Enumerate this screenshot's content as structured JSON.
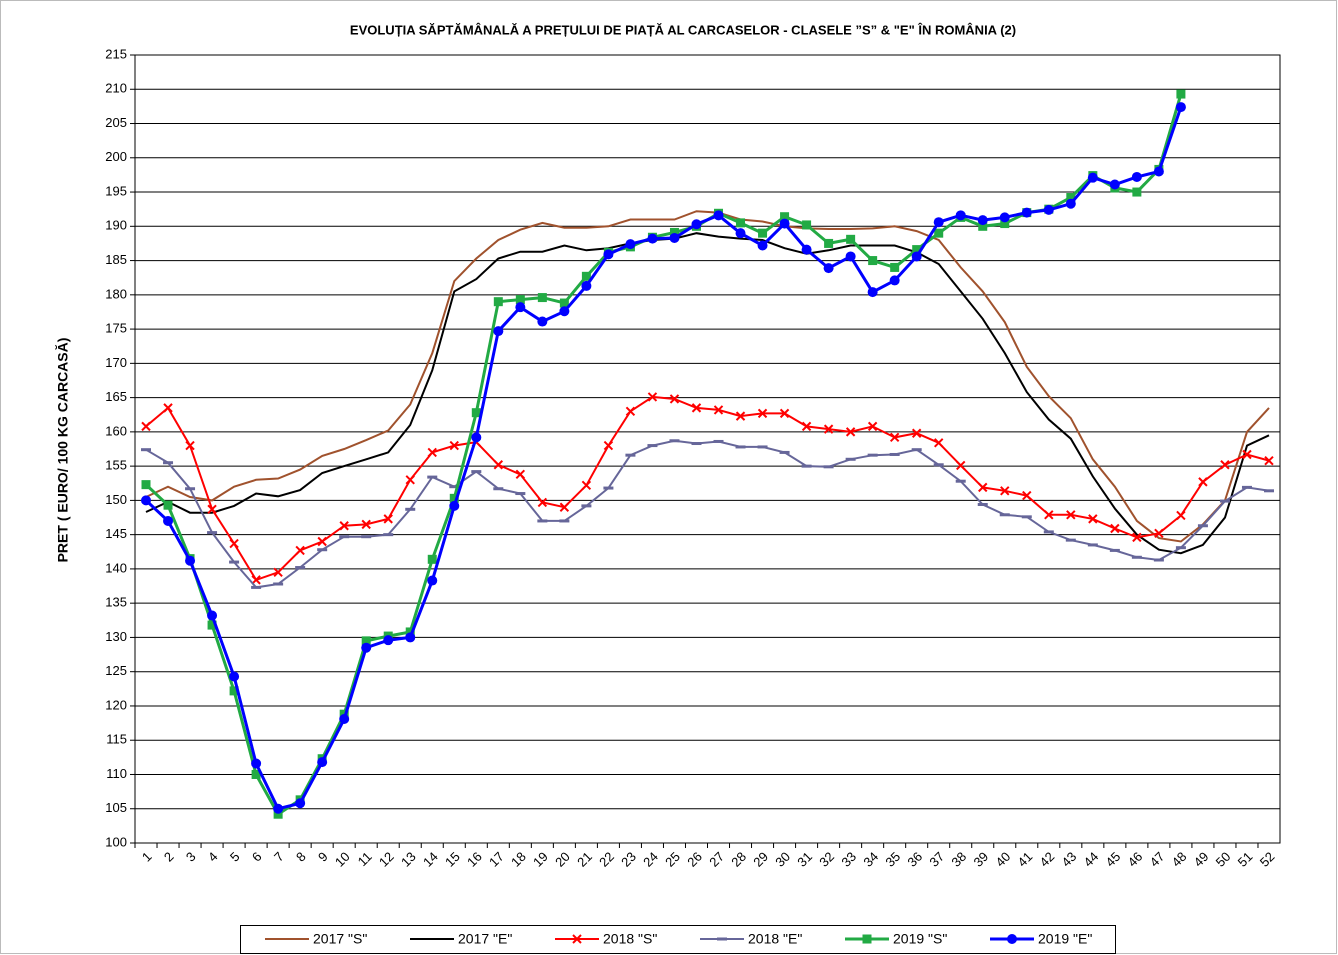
{
  "chart_data": {
    "type": "line",
    "title": "EVOLUȚIA SĂPTĂMÂNALĂ A PREȚULUI  DE PIAȚĂ  AL CARCASELOR  - CLASELE ”S” & \"E\" ÎN ROMÂNIA (2)",
    "y_label": "PRET ( EURO/ 100 KG CARCASĂ)",
    "categories": [
      "1",
      "2",
      "3",
      "4",
      "5",
      "6",
      "7",
      "8",
      "9",
      "10",
      "11",
      "12",
      "13",
      "14",
      "15",
      "16",
      "17",
      "18",
      "19",
      "20",
      "21",
      "22",
      "23",
      "24",
      "25",
      "26",
      "27",
      "28",
      "29",
      "30",
      "31",
      "32",
      "33",
      "34",
      "35",
      "36",
      "37",
      "38",
      "39",
      "40",
      "41",
      "42",
      "43",
      "44",
      "45",
      "46",
      "47",
      "48",
      "49",
      "50",
      "51",
      "52"
    ],
    "ylim": [
      100,
      215
    ],
    "yticks": [
      100,
      105,
      110,
      115,
      120,
      125,
      130,
      135,
      140,
      145,
      150,
      155,
      160,
      165,
      170,
      175,
      180,
      185,
      190,
      195,
      200,
      205,
      210,
      215
    ],
    "grid": true,
    "legend": "bottom",
    "series": [
      {
        "name": "2017 \"S\"",
        "color": "#a0522d",
        "marker": "none",
        "values": [
          150.5,
          152,
          150.5,
          150,
          152,
          153,
          153.2,
          154.5,
          156.5,
          157.5,
          158.8,
          160.2,
          164,
          171.5,
          182,
          185.3,
          188,
          189.5,
          190.5,
          189.8,
          189.8,
          190,
          191,
          191,
          191,
          192.2,
          192,
          191,
          190.7,
          190,
          189.7,
          189.6,
          189.6,
          189.7,
          190,
          189.3,
          188,
          184,
          180.5,
          176,
          169.5,
          165.2,
          162,
          156,
          152,
          147,
          144.5,
          144,
          146.5,
          150,
          160,
          163.5
        ]
      },
      {
        "name": "2017 \"E\"",
        "color": "#000000",
        "marker": "none",
        "values": [
          148.3,
          149.8,
          148.2,
          148.2,
          149.2,
          151,
          150.6,
          151.5,
          154,
          155,
          156,
          157,
          161,
          169,
          180.5,
          182.3,
          185.3,
          186.3,
          186.3,
          187.2,
          186.5,
          186.8,
          187.5,
          188,
          188.2,
          189,
          188.5,
          188.2,
          188,
          186.8,
          186,
          186.5,
          187.2,
          187.2,
          187.2,
          186.2,
          184.5,
          180.5,
          176.5,
          171.5,
          165.8,
          161.8,
          159,
          153.5,
          148.8,
          145,
          142.8,
          142.3,
          143.5,
          147.5,
          158,
          159.5
        ]
      },
      {
        "name": "2018 \"S\"",
        "color": "#ff0000",
        "marker": "x",
        "values": [
          160.8,
          163.5,
          158,
          148.7,
          143.7,
          138.4,
          139.5,
          142.7,
          144,
          146.3,
          146.5,
          147.3,
          153,
          157,
          158,
          158.5,
          155.2,
          153.8,
          149.7,
          149,
          152.2,
          158,
          163,
          165.1,
          164.8,
          163.5,
          163.2,
          162.3,
          162.7,
          162.7,
          160.8,
          160.4,
          160,
          160.8,
          159.2,
          159.8,
          158.4,
          155.1,
          151.9,
          151.4,
          150.7,
          147.9,
          147.9,
          147.3,
          145.9,
          144.6,
          145.2,
          147.8,
          152.7,
          155.2,
          156.7,
          155.8
        ]
      },
      {
        "name": "2018 \"E\"",
        "color": "#666699",
        "marker": "dash",
        "values": [
          157.4,
          155.5,
          151.7,
          145.3,
          141,
          137.3,
          137.8,
          140.2,
          142.8,
          144.7,
          144.7,
          145,
          148.7,
          153.4,
          152,
          154.2,
          151.7,
          151,
          147,
          147,
          149.2,
          151.8,
          156.6,
          158,
          158.7,
          158.3,
          158.6,
          157.8,
          157.8,
          157,
          155,
          154.9,
          156,
          156.6,
          156.7,
          157.4,
          155.2,
          152.8,
          149.4,
          147.9,
          147.6,
          145.4,
          144.2,
          143.5,
          142.7,
          141.7,
          141.3,
          143.1,
          146.3,
          149.9,
          151.9,
          151.4
        ]
      },
      {
        "name": "2019 \"S\"",
        "color": "#22aa44",
        "marker": "square",
        "values": [
          152.3,
          149.3,
          141.5,
          131.8,
          122.2,
          110,
          104.2,
          106.3,
          112.3,
          118.8,
          129.5,
          130.2,
          130.8,
          141.4,
          150.3,
          162.8,
          179,
          179.3,
          179.6,
          178.8,
          182.7,
          186.2,
          187,
          188.4,
          189.1,
          190,
          191.9,
          190.5,
          189,
          191.4,
          190.2,
          187.5,
          188.1,
          185,
          184,
          186.6,
          189,
          191.3,
          190,
          190.4,
          192,
          192.5,
          194.2,
          197.4,
          195.6,
          195,
          198.3,
          209.3,
          null,
          null,
          null,
          null
        ]
      },
      {
        "name": "2019 \"E\"",
        "color": "#0000ff",
        "marker": "circle",
        "values": [
          150,
          147,
          141.2,
          133.2,
          124.3,
          111.6,
          105,
          105.8,
          111.8,
          118.1,
          128.5,
          129.6,
          130,
          138.3,
          149.2,
          159.2,
          174.7,
          178.2,
          176.1,
          177.6,
          181.3,
          185.9,
          187.4,
          188.2,
          188.3,
          190.3,
          191.6,
          189,
          187.2,
          190.4,
          186.6,
          183.9,
          185.6,
          180.4,
          182.1,
          185.6,
          190.6,
          191.6,
          190.9,
          191.3,
          192,
          192.4,
          193.3,
          197.1,
          196.1,
          197.2,
          198,
          207.4,
          null,
          null,
          null,
          null
        ]
      }
    ]
  }
}
